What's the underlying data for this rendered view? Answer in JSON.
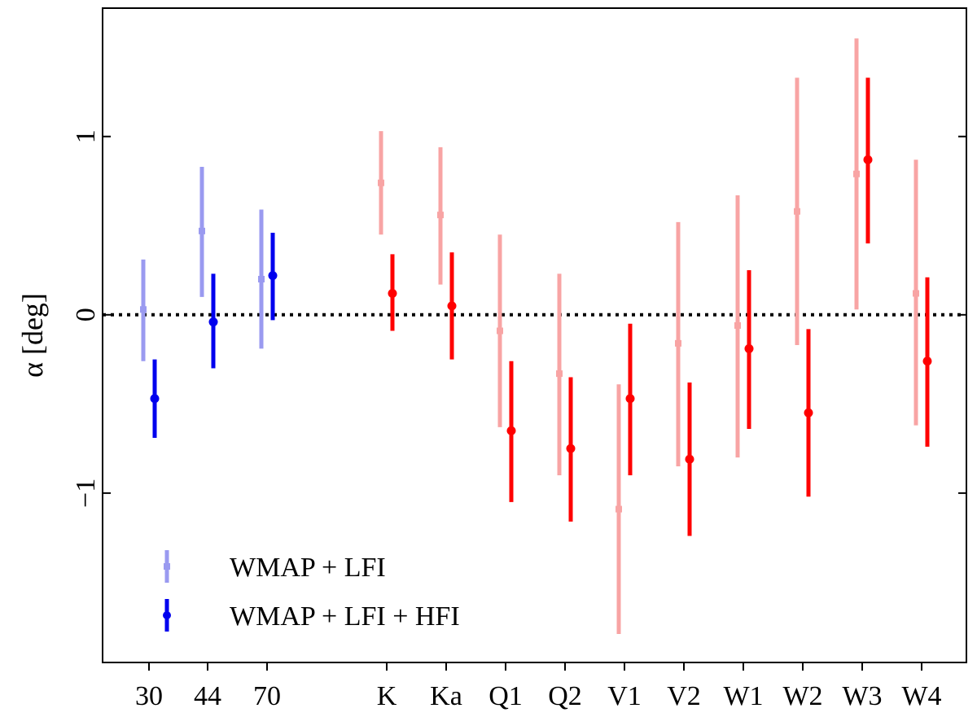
{
  "chart_data": {
    "type": "scatter",
    "categories": [
      "30",
      "44",
      "70",
      "K",
      "Ka",
      "Q1",
      "Q2",
      "V1",
      "V2",
      "W1",
      "W2",
      "W3",
      "W4"
    ],
    "ylabel": "α [deg]",
    "ylim": [
      -1.95,
      1.72
    ],
    "yticks": [
      -1,
      0,
      1
    ],
    "ytick_labels": [
      "−1",
      "0",
      "1"
    ],
    "reference_line": {
      "y": 0,
      "style": "dotted"
    },
    "series": [
      {
        "name": "WMAP + LFI",
        "group_colors": {
          "LFI": "#9a9af0",
          "WMAP": "#f8a4a4"
        },
        "marker": "square",
        "points": [
          {
            "category": "30",
            "y": 0.03,
            "lo": -0.26,
            "hi": 0.31
          },
          {
            "category": "44",
            "y": 0.47,
            "lo": 0.1,
            "hi": 0.83
          },
          {
            "category": "70",
            "y": 0.2,
            "lo": -0.19,
            "hi": 0.59
          },
          {
            "category": "K",
            "y": 0.74,
            "lo": 0.45,
            "hi": 1.03
          },
          {
            "category": "Ka",
            "y": 0.56,
            "lo": 0.17,
            "hi": 0.94
          },
          {
            "category": "Q1",
            "y": -0.09,
            "lo": -0.63,
            "hi": 0.45
          },
          {
            "category": "Q2",
            "y": -0.33,
            "lo": -0.9,
            "hi": 0.23
          },
          {
            "category": "V1",
            "y": -1.09,
            "lo": -1.79,
            "hi": -0.39
          },
          {
            "category": "V2",
            "y": -0.16,
            "lo": -0.85,
            "hi": 0.52
          },
          {
            "category": "W1",
            "y": -0.06,
            "lo": -0.8,
            "hi": 0.67
          },
          {
            "category": "W2",
            "y": 0.58,
            "lo": -0.17,
            "hi": 1.33
          },
          {
            "category": "W3",
            "y": 0.79,
            "lo": 0.03,
            "hi": 1.55
          },
          {
            "category": "W4",
            "y": 0.12,
            "lo": -0.62,
            "hi": 0.87
          }
        ]
      },
      {
        "name": "WMAP + LFI + HFI",
        "group_colors": {
          "LFI": "#0000ee",
          "WMAP": "#ff0000"
        },
        "marker": "circle",
        "points": [
          {
            "category": "30",
            "y": -0.47,
            "lo": -0.69,
            "hi": -0.25
          },
          {
            "category": "44",
            "y": -0.04,
            "lo": -0.3,
            "hi": 0.23
          },
          {
            "category": "70",
            "y": 0.22,
            "lo": -0.03,
            "hi": 0.46
          },
          {
            "category": "K",
            "y": 0.12,
            "lo": -0.09,
            "hi": 0.34
          },
          {
            "category": "Ka",
            "y": 0.05,
            "lo": -0.25,
            "hi": 0.35
          },
          {
            "category": "Q1",
            "y": -0.65,
            "lo": -1.05,
            "hi": -0.26
          },
          {
            "category": "Q2",
            "y": -0.75,
            "lo": -1.16,
            "hi": -0.35
          },
          {
            "category": "V1",
            "y": -0.47,
            "lo": -0.9,
            "hi": -0.05
          },
          {
            "category": "V2",
            "y": -0.81,
            "lo": -1.24,
            "hi": -0.38
          },
          {
            "category": "W1",
            "y": -0.19,
            "lo": -0.64,
            "hi": 0.25
          },
          {
            "category": "W2",
            "y": -0.55,
            "lo": -1.02,
            "hi": -0.08
          },
          {
            "category": "W3",
            "y": 0.87,
            "lo": 0.4,
            "hi": 1.33
          },
          {
            "category": "W4",
            "y": -0.26,
            "lo": -0.74,
            "hi": 0.21
          }
        ]
      }
    ],
    "legend": {
      "placement": "bottom-left",
      "entries": [
        "WMAP + LFI",
        "WMAP + LFI + HFI"
      ]
    }
  }
}
